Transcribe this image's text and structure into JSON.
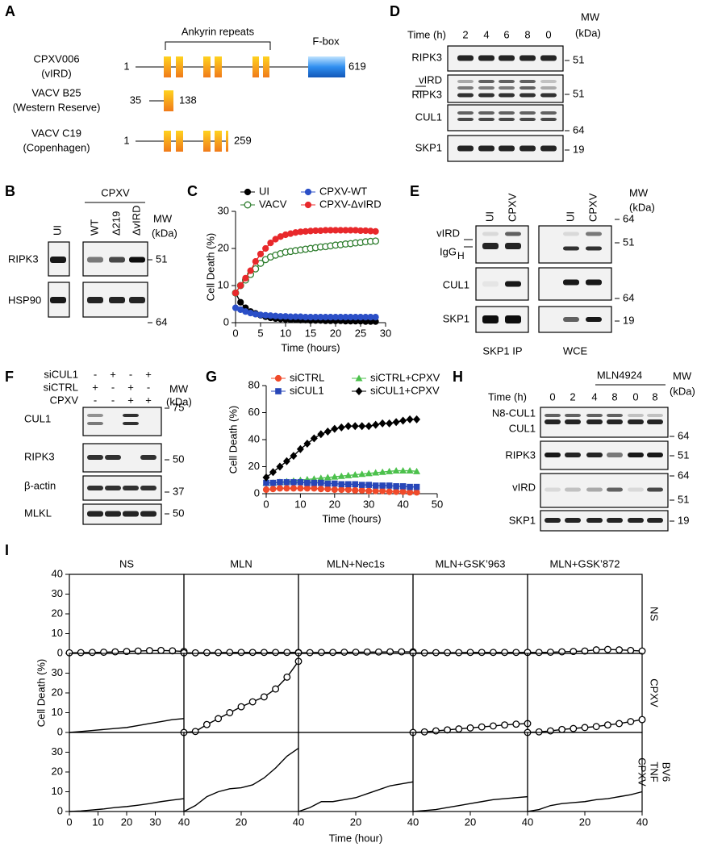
{
  "panel_a": {
    "label": "A",
    "repeats": "Ankyrin repeats",
    "fbox": "F-box",
    "proteins": [
      {
        "name": "CPXV006",
        "alias": "(vIRD)",
        "start": 1,
        "end": 619
      },
      {
        "name": "VACV B25",
        "alias": "(Western Reserve)",
        "start": 35,
        "end": 138
      },
      {
        "name": "VACV C19",
        "alias": "(Copenhagen)",
        "start": 1,
        "end": 259
      }
    ]
  },
  "panel_b": {
    "label": "B",
    "group": "CPXV",
    "lanes": [
      "UI",
      "WT",
      "Δ219",
      "ΔvIRD"
    ],
    "mw": "MW",
    "mw_unit": "(kDa)",
    "blots": [
      "RIPK3",
      "HSP90"
    ],
    "markers": [
      51,
      64
    ]
  },
  "panel_d": {
    "label": "D",
    "time": "Time (h)",
    "lanes": [
      2,
      4,
      6,
      8,
      0
    ],
    "mw": "MW",
    "mw_unit": "(kDa)",
    "blots": [
      "RIPK3",
      "vIRD",
      "RIPK3",
      "CUL1",
      "SKP1"
    ],
    "markers": [
      51,
      51,
      64,
      19
    ]
  },
  "panel_e": {
    "label": "E",
    "lanes": [
      "UI",
      "CPXV",
      "UI",
      "CPXV"
    ],
    "mw": "MW",
    "mw_unit": "(kDa)",
    "blots": [
      "vIRD",
      "IgG",
      "H",
      "CUL1",
      "SKP1"
    ],
    "markers": [
      64,
      51,
      64,
      19
    ],
    "groups": [
      "SKP1 IP",
      "WCE"
    ]
  },
  "panel_f": {
    "label": "F",
    "conditions": [
      "siCUL1",
      "siCTRL",
      "CPXV"
    ],
    "signs": [
      [
        "-",
        "+",
        "-",
        "+"
      ],
      [
        "+",
        "-",
        "+",
        "-"
      ],
      [
        "-",
        "-",
        "+",
        "+"
      ]
    ],
    "mw": "MW",
    "mw_unit": "(kDa)",
    "blots": [
      "CUL1",
      "RIPK3",
      "β-actin",
      "MLKL"
    ],
    "markers": [
      75,
      50,
      37,
      50
    ]
  },
  "panel_h": {
    "label": "H",
    "time": "Time (h)",
    "lanes": [
      0,
      2,
      4,
      8,
      0,
      8
    ],
    "drug": "MLN4924",
    "mw": "MW",
    "mw_unit": "(kDa)",
    "blots": [
      "N8-CUL1",
      "CUL1",
      "RIPK3",
      "vIRD",
      "SKP1"
    ],
    "markers": [
      64,
      51,
      64,
      51,
      19
    ]
  },
  "panel_i": {
    "label": "I",
    "y_label": "Cell Death (%)",
    "x_label": "Time (hour)",
    "columns": [
      "NS",
      "MLN",
      "MLN+Nec1s",
      "MLN+GSK’963",
      "MLN+GSK’872"
    ],
    "rows": [
      [
        "NS"
      ],
      [
        "CPXV"
      ],
      [
        "CPXV",
        "TNF",
        "BV6"
      ]
    ]
  },
  "chart_data": [
    {
      "panel": "C",
      "type": "line",
      "x_label": "Time (hours)",
      "y_label": "Cell Death (%)",
      "xlim": [
        0,
        30
      ],
      "xticks": [
        0,
        5,
        10,
        15,
        20,
        25,
        30
      ],
      "ylim": [
        0,
        30
      ],
      "yticks": [
        0,
        10,
        20,
        30
      ],
      "x": [
        0,
        1,
        2,
        3,
        4,
        5,
        6,
        7,
        8,
        9,
        10,
        11,
        12,
        13,
        14,
        15,
        16,
        17,
        18,
        19,
        20,
        21,
        22,
        23,
        24,
        25,
        26,
        27,
        28
      ],
      "series": [
        {
          "name": "UI",
          "color": "#000000",
          "marker": "circle",
          "values": [
            8,
            5.5,
            4,
            3,
            2.5,
            2,
            1.6,
            1.3,
            1.1,
            1,
            0.9,
            0.8,
            0.8,
            0.7,
            0.7,
            0.6,
            0.6,
            0.6,
            0.5,
            0.5,
            0.5,
            0.5,
            0.4,
            0.4,
            0.4,
            0.4,
            0.3,
            0.3,
            0.3
          ]
        },
        {
          "name": "CPXV-WT",
          "color": "#2b4fc7",
          "marker": "circle",
          "values": [
            4,
            3.5,
            3,
            2.6,
            2.3,
            2.1,
            2,
            1.9,
            1.8,
            1.7,
            1.7,
            1.6,
            1.6,
            1.6,
            1.5,
            1.5,
            1.5,
            1.5,
            1.5,
            1.5,
            1.5,
            1.5,
            1.5,
            1.5,
            1.5,
            1.5,
            1.5,
            1.5,
            1.5
          ]
        },
        {
          "name": "VACV",
          "color": "#2e7d2e",
          "marker": "circle-open",
          "values": [
            8,
            10,
            11.5,
            13,
            14.5,
            16,
            17,
            17.7,
            18.2,
            18.6,
            19,
            19.2,
            19.4,
            19.6,
            19.8,
            20,
            20.2,
            20.4,
            20.5,
            20.7,
            20.9,
            21,
            21.2,
            21.3,
            21.5,
            21.6,
            21.8,
            21.9,
            22
          ]
        },
        {
          "name": "CPXV-ΔvIRD",
          "color": "#e8282b",
          "marker": "circle",
          "values": [
            8,
            10,
            12,
            14,
            16.5,
            18.5,
            20,
            21.5,
            22.5,
            23.2,
            23.7,
            24,
            24.3,
            24.5,
            24.6,
            24.7,
            24.8,
            24.8,
            24.9,
            24.9,
            24.9,
            24.9,
            24.9,
            24.9,
            24.9,
            24.8,
            24.8,
            24.7,
            24.6
          ]
        }
      ]
    },
    {
      "panel": "G",
      "type": "line",
      "x_label": "Time (hours)",
      "y_label": "Cell Death (%)",
      "xlim": [
        0,
        50
      ],
      "xticks": [
        0,
        10,
        20,
        30,
        40,
        50
      ],
      "ylim": [
        0,
        80
      ],
      "yticks": [
        0,
        20,
        40,
        60,
        80
      ],
      "x": [
        0,
        2,
        4,
        6,
        8,
        10,
        12,
        14,
        16,
        18,
        20,
        22,
        24,
        26,
        28,
        30,
        32,
        34,
        36,
        38,
        40,
        42,
        44
      ],
      "series": [
        {
          "name": "siCTRL",
          "color": "#f04a2a",
          "marker": "circle",
          "values": [
            3,
            3.5,
            4,
            4,
            4,
            4,
            4,
            4,
            3.5,
            3.5,
            3,
            3,
            3,
            2.5,
            2.5,
            2,
            2,
            2,
            1.5,
            1.5,
            1.5,
            1,
            1
          ]
        },
        {
          "name": "siCTRL+CPXV",
          "color": "#4cc14c",
          "marker": "triangle",
          "values": [
            8,
            8,
            8.5,
            9,
            9.5,
            10,
            10.5,
            11,
            11.5,
            12,
            12.5,
            13,
            13.5,
            14,
            14.5,
            15,
            15.5,
            16,
            16.5,
            17,
            17,
            17,
            16.5
          ]
        },
        {
          "name": "siCUL1",
          "color": "#2746b8",
          "marker": "square",
          "values": [
            8,
            8,
            8.5,
            8.5,
            8.5,
            8.5,
            8,
            8,
            8,
            7.5,
            7.5,
            7,
            7,
            7,
            6.5,
            6.5,
            6,
            6,
            6,
            5.5,
            5.5,
            5,
            5
          ]
        },
        {
          "name": "siCUL1+CPXV",
          "color": "#000000",
          "marker": "diamond",
          "values": [
            12,
            16,
            20,
            24,
            28,
            33,
            37,
            41,
            44,
            46,
            48,
            49,
            50,
            50,
            50,
            50,
            51,
            52,
            52,
            53,
            54,
            55,
            55
          ]
        }
      ]
    },
    {
      "type": "line",
      "xlim": [
        0,
        40
      ],
      "ylim": [
        0,
        40
      ],
      "yticks": [
        0,
        10,
        20,
        30,
        40
      ],
      "x": [
        0,
        4,
        8,
        12,
        16,
        20,
        24,
        28,
        32,
        36,
        40
      ],
      "series": [
        {
          "color": "#000000",
          "marker": "circle-open",
          "values": [
            0.3,
            0.4,
            0.5,
            0.6,
            0.8,
            1,
            1.2,
            1.4,
            1.5,
            1.3,
            1
          ]
        }
      ]
    },
    {
      "type": "line",
      "xlim": [
        0,
        40
      ],
      "ylim": [
        0,
        40
      ],
      "x": [
        0,
        4,
        8,
        12,
        16,
        20,
        24,
        28,
        32,
        36,
        40
      ],
      "series": [
        {
          "color": "#000000",
          "marker": "circle-open",
          "values": [
            0.3,
            0.3,
            0.4,
            0.4,
            0.5,
            0.5,
            0.5,
            0.5,
            0.5,
            0.5,
            0.5
          ]
        }
      ]
    },
    {
      "type": "line",
      "xlim": [
        0,
        40
      ],
      "ylim": [
        0,
        40
      ],
      "x": [
        0,
        4,
        8,
        12,
        16,
        20,
        24,
        28,
        32,
        36,
        40
      ],
      "series": [
        {
          "color": "#000000",
          "marker": "circle-open",
          "values": [
            0.3,
            0.4,
            0.5,
            0.5,
            0.6,
            0.6,
            0.7,
            0.7,
            0.8,
            0.8,
            0.8
          ]
        }
      ]
    },
    {
      "type": "line",
      "xlim": [
        0,
        40
      ],
      "ylim": [
        0,
        40
      ],
      "x": [
        0,
        4,
        8,
        12,
        16,
        20,
        24,
        28,
        32,
        36,
        40
      ],
      "series": [
        {
          "color": "#000000",
          "marker": "circle-open",
          "values": [
            0.3,
            0.3,
            0.4,
            0.4,
            0.4,
            0.5,
            0.5,
            0.5,
            0.5,
            0.5,
            0.5
          ]
        }
      ]
    },
    {
      "type": "line",
      "xlim": [
        0,
        40
      ],
      "ylim": [
        0,
        40
      ],
      "x": [
        0,
        4,
        8,
        12,
        16,
        20,
        24,
        28,
        32,
        36,
        40
      ],
      "series": [
        {
          "color": "#000000",
          "marker": "circle-open",
          "values": [
            0.5,
            0.5,
            0.6,
            0.8,
            1,
            1.2,
            1.8,
            2,
            1.8,
            1.5,
            1.2
          ]
        }
      ]
    },
    {
      "type": "line",
      "xlim": [
        0,
        40
      ],
      "ylim": [
        0,
        40
      ],
      "yticks": [
        0,
        10,
        20,
        30
      ],
      "x": [
        0,
        4,
        8,
        12,
        16,
        20,
        24,
        28,
        32,
        36,
        40
      ],
      "series": [
        {
          "color": "#000000",
          "values": [
            0,
            0.5,
            1,
            1.5,
            2,
            2.5,
            3.5,
            4.5,
            5.5,
            6.5,
            7
          ]
        }
      ]
    },
    {
      "type": "line",
      "xlim": [
        0,
        40
      ],
      "ylim": [
        0,
        40
      ],
      "x": [
        0,
        4,
        8,
        12,
        16,
        20,
        24,
        28,
        32,
        36,
        40
      ],
      "series": [
        {
          "color": "#000000",
          "marker": "circle-open",
          "values": [
            0,
            0.5,
            4,
            7,
            10,
            13,
            15.5,
            18,
            22,
            28,
            36
          ]
        }
      ]
    },
    {
      "type": "line",
      "xlim": [
        0,
        40
      ],
      "ylim": [
        0,
        40
      ],
      "series": []
    },
    {
      "type": "line",
      "xlim": [
        0,
        40
      ],
      "ylim": [
        0,
        40
      ],
      "x": [
        0,
        4,
        8,
        12,
        16,
        20,
        24,
        28,
        32,
        36,
        40
      ],
      "series": [
        {
          "color": "#000000",
          "marker": "circle-open",
          "values": [
            0,
            0.3,
            0.8,
            1.3,
            1.8,
            2.3,
            2.8,
            3.3,
            3.8,
            4.2,
            4.5
          ]
        }
      ]
    },
    {
      "type": "line",
      "xlim": [
        0,
        40
      ],
      "ylim": [
        0,
        40
      ],
      "x": [
        0,
        4,
        8,
        12,
        16,
        20,
        24,
        28,
        32,
        36,
        40
      ],
      "series": [
        {
          "color": "#000000",
          "marker": "circle-open",
          "values": [
            0,
            0.3,
            0.8,
            1.5,
            2,
            2.5,
            3,
            3.8,
            4.5,
            5.5,
            6.5
          ]
        }
      ]
    },
    {
      "type": "line",
      "xlim": [
        0,
        40
      ],
      "ylim": [
        0,
        40
      ],
      "yticks": [
        0,
        10,
        20,
        30
      ],
      "xticks": [
        0,
        10,
        20,
        30,
        40
      ],
      "x": [
        0,
        4,
        8,
        12,
        16,
        20,
        24,
        28,
        32,
        36,
        40
      ],
      "series": [
        {
          "color": "#000000",
          "values": [
            0,
            0.3,
            0.8,
            1.3,
            2,
            2.5,
            3.2,
            4,
            5,
            5.8,
            6.5
          ]
        }
      ]
    },
    {
      "type": "line",
      "xlim": [
        0,
        40
      ],
      "ylim": [
        0,
        40
      ],
      "xticks": [
        20,
        40
      ],
      "x": [
        0,
        4,
        8,
        12,
        16,
        20,
        24,
        28,
        32,
        36,
        40
      ],
      "series": [
        {
          "color": "#000000",
          "values": [
            0,
            3,
            7.5,
            10,
            11.5,
            12,
            13.5,
            17,
            22,
            28,
            32
          ]
        }
      ]
    },
    {
      "type": "line",
      "xlim": [
        0,
        40
      ],
      "ylim": [
        0,
        40
      ],
      "xticks": [
        20,
        40
      ],
      "x": [
        0,
        4,
        8,
        12,
        16,
        20,
        24,
        28,
        32,
        36,
        40
      ],
      "series": [
        {
          "color": "#000000",
          "values": [
            0,
            2,
            5,
            5,
            6,
            7,
            9,
            11,
            13,
            14,
            15
          ]
        }
      ]
    },
    {
      "type": "line",
      "xlim": [
        0,
        40
      ],
      "ylim": [
        0,
        40
      ],
      "xticks": [
        20,
        40
      ],
      "x": [
        0,
        4,
        8,
        12,
        16,
        20,
        24,
        28,
        32,
        36,
        40
      ],
      "series": [
        {
          "color": "#000000",
          "values": [
            0,
            0.5,
            1,
            2,
            3,
            4,
            5,
            6,
            6.5,
            7,
            7.5
          ]
        }
      ]
    },
    {
      "type": "line",
      "xlim": [
        0,
        40
      ],
      "ylim": [
        0,
        40
      ],
      "xticks": [
        20,
        40
      ],
      "x": [
        0,
        4,
        8,
        12,
        16,
        20,
        24,
        28,
        32,
        36,
        40
      ],
      "series": [
        {
          "color": "#000000",
          "values": [
            0,
            1,
            3,
            4,
            4.5,
            5,
            6,
            6.5,
            7.5,
            8.5,
            10
          ]
        }
      ]
    }
  ]
}
